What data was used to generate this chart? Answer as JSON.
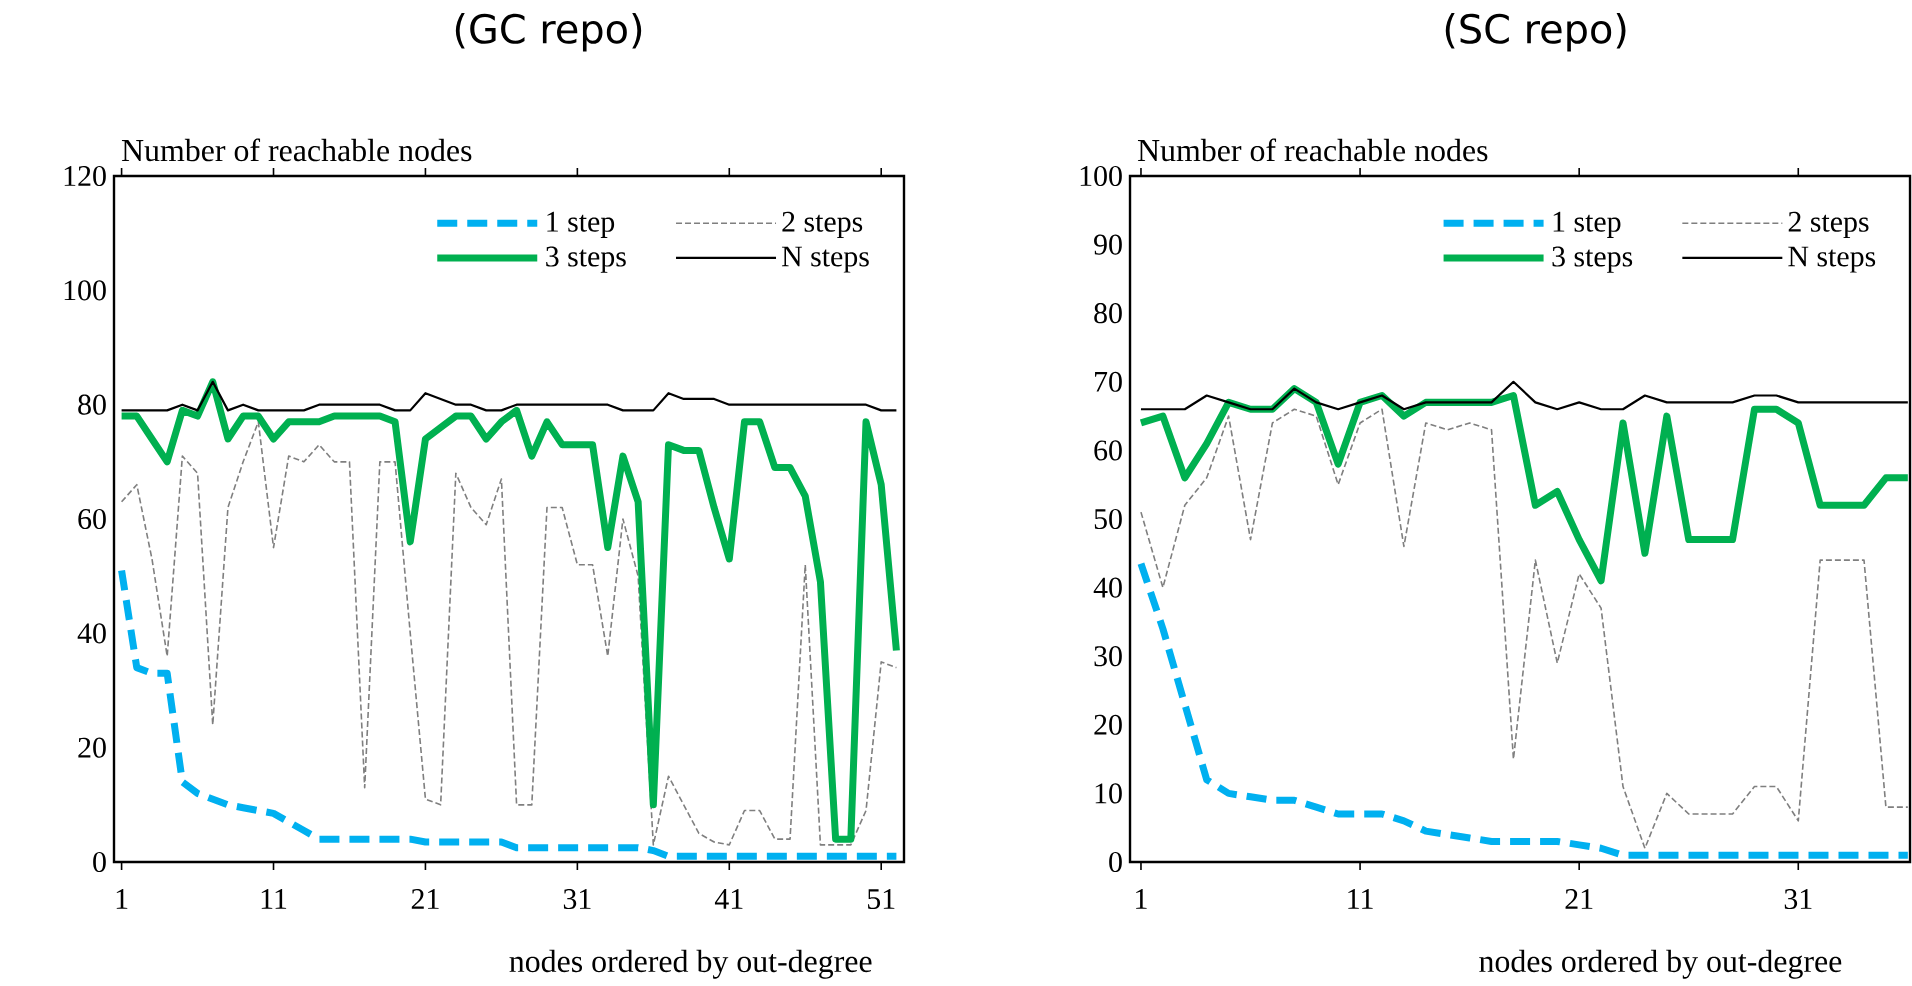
{
  "chart_data": [
    {
      "type": "line",
      "title": "(GC repo)",
      "xlabel": "nodes ordered by out-degree",
      "ylabel": "Number of reachable nodes",
      "x": [
        1,
        2,
        3,
        4,
        5,
        6,
        7,
        8,
        9,
        10,
        11,
        12,
        13,
        14,
        15,
        16,
        17,
        18,
        19,
        20,
        21,
        22,
        23,
        24,
        25,
        26,
        27,
        28,
        29,
        30,
        31,
        32,
        33,
        34,
        35,
        36,
        37,
        38,
        39,
        40,
        41,
        42,
        43,
        44,
        45,
        46,
        47,
        48,
        49,
        50,
        51,
        52
      ],
      "xlim": [
        0.5,
        52.5
      ],
      "xticks": [
        1,
        11,
        21,
        31,
        41,
        51
      ],
      "ylim": [
        0,
        120
      ],
      "yticks": [
        0,
        20,
        40,
        60,
        80,
        100,
        120
      ],
      "legend": "top right",
      "series": [
        {
          "name": "1 step",
          "color": "#00b0f0",
          "line_style": "dashed",
          "values": [
            51,
            34,
            33,
            33,
            14,
            12,
            11,
            10,
            9.5,
            9,
            8.5,
            7,
            5.5,
            4,
            4,
            4,
            4,
            4,
            4,
            4,
            3.5,
            3.5,
            3.5,
            3.5,
            3.5,
            3.5,
            2.5,
            2.5,
            2.5,
            2.5,
            2.5,
            2.5,
            2.5,
            2.5,
            2.5,
            2,
            1,
            1,
            1,
            1,
            1,
            1,
            1,
            1,
            1,
            1,
            1,
            1,
            1,
            1,
            1,
            1
          ]
        },
        {
          "name": "2 steps",
          "color": "#7f7f7f",
          "line_style": "dashed",
          "values": [
            63,
            66,
            53,
            36,
            71,
            68,
            24,
            62,
            70,
            77,
            55,
            71,
            70,
            73,
            70,
            70,
            13,
            70,
            70,
            40,
            11,
            10,
            68,
            62,
            59,
            67,
            10,
            10,
            62,
            62,
            52,
            52,
            36,
            60,
            50,
            3,
            15,
            10,
            5,
            3.5,
            3,
            9,
            9,
            4,
            4,
            52,
            3,
            3,
            3,
            9,
            35,
            34
          ]
        },
        {
          "name": "3 steps",
          "color": "#00b050",
          "line_style": "solid",
          "values": [
            78,
            78,
            74,
            70,
            79,
            78,
            84,
            74,
            78,
            78,
            74,
            77,
            77,
            77,
            78,
            78,
            78,
            78,
            77,
            56,
            74,
            76,
            78,
            78,
            74,
            77,
            79,
            71,
            77,
            73,
            73,
            73,
            55,
            71,
            63,
            10,
            73,
            72,
            72,
            62,
            53,
            77,
            77,
            69,
            69,
            64,
            49,
            4,
            4,
            77,
            66,
            37
          ]
        },
        {
          "name": "N steps",
          "color": "#000000",
          "line_style": "solid",
          "values": [
            79,
            79,
            79,
            79,
            80,
            79,
            84,
            79,
            80,
            79,
            79,
            79,
            79,
            80,
            80,
            80,
            80,
            80,
            79,
            79,
            82,
            81,
            80,
            80,
            79,
            79,
            80,
            80,
            80,
            80,
            80,
            80,
            80,
            79,
            79,
            79,
            82,
            81,
            81,
            81,
            80,
            80,
            80,
            80,
            80,
            80,
            80,
            80,
            80,
            80,
            79,
            79
          ]
        }
      ]
    },
    {
      "type": "line",
      "title": "(SC repo)",
      "xlabel": "nodes ordered by out-degree",
      "ylabel": "Number of reachable nodes",
      "x": [
        1,
        2,
        3,
        4,
        5,
        6,
        7,
        8,
        9,
        10,
        11,
        12,
        13,
        14,
        15,
        16,
        17,
        18,
        19,
        20,
        21,
        22,
        23,
        24,
        25,
        26,
        27,
        28,
        29,
        30,
        31,
        32,
        33,
        34,
        35,
        36
      ],
      "xlim": [
        0.5,
        36.1
      ],
      "xticks": [
        1,
        11,
        21,
        31
      ],
      "ylim": [
        0,
        100
      ],
      "yticks": [
        0,
        10,
        20,
        30,
        40,
        50,
        60,
        70,
        80,
        90,
        100
      ],
      "legend": "top right",
      "series": [
        {
          "name": "1 step",
          "color": "#00b0f0",
          "line_style": "dashed",
          "values": [
            43.5,
            34,
            23,
            12,
            10,
            9.5,
            9,
            9,
            8,
            7,
            7,
            7,
            6,
            4.5,
            4,
            3.5,
            3,
            3,
            3,
            3,
            2.5,
            2,
            1,
            1,
            1,
            1,
            1,
            1,
            1,
            1,
            1,
            1,
            1,
            1,
            1,
            1
          ]
        },
        {
          "name": "2 steps",
          "color": "#7f7f7f",
          "line_style": "dashed",
          "values": [
            51,
            40,
            52,
            56,
            65,
            47,
            64,
            66,
            65,
            55,
            64,
            66,
            46,
            64,
            63,
            64,
            63,
            15,
            44,
            29,
            42,
            37,
            11,
            2,
            10,
            7,
            7,
            7,
            11,
            11,
            6,
            44,
            44,
            44,
            8,
            8
          ]
        },
        {
          "name": "3 steps",
          "color": "#00b050",
          "line_style": "solid",
          "values": [
            64,
            65,
            56,
            61,
            67,
            66,
            66,
            69,
            67,
            58,
            67,
            68,
            65,
            67,
            67,
            67,
            67,
            68,
            52,
            54,
            47,
            41,
            64,
            45,
            65,
            47,
            47,
            47,
            66,
            66,
            64,
            52,
            52,
            52,
            56,
            56
          ]
        },
        {
          "name": "N steps",
          "color": "#000000",
          "line_style": "solid",
          "values": [
            66,
            66,
            66,
            68,
            67,
            66,
            66,
            69,
            67,
            66,
            67,
            68,
            66,
            67,
            67,
            67,
            67,
            70,
            67,
            66,
            67,
            66,
            66,
            68,
            67,
            67,
            67,
            67,
            68,
            68,
            67,
            67,
            67,
            67,
            67,
            67
          ]
        }
      ]
    }
  ]
}
